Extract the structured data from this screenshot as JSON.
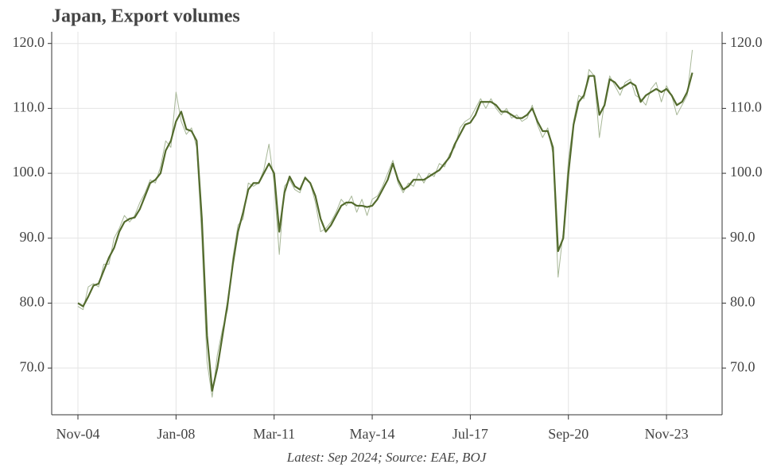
{
  "chart_data": {
    "type": "line",
    "title": "Japan, Export volumes",
    "footnote": "Latest: Sep 2024; Source: EAE, BOJ",
    "x": [
      "Nov-04",
      "Jan-05",
      "Mar-05",
      "May-05",
      "Jul-05",
      "Sep-05",
      "Nov-05",
      "Jan-06",
      "Mar-06",
      "May-06",
      "Jul-06",
      "Sep-06",
      "Nov-06",
      "Jan-07",
      "Mar-07",
      "May-07",
      "Jul-07",
      "Sep-07",
      "Nov-07",
      "Jan-08",
      "Mar-08",
      "May-08",
      "Jul-08",
      "Sep-08",
      "Nov-08",
      "Jan-09",
      "Mar-09",
      "May-09",
      "Jul-09",
      "Sep-09",
      "Nov-09",
      "Jan-10",
      "Mar-10",
      "May-10",
      "Jul-10",
      "Sep-10",
      "Nov-10",
      "Jan-11",
      "Mar-11",
      "May-11",
      "Jul-11",
      "Sep-11",
      "Nov-11",
      "Jan-12",
      "Mar-12",
      "May-12",
      "Jul-12",
      "Sep-12",
      "Nov-12",
      "Jan-13",
      "Mar-13",
      "May-13",
      "Jul-13",
      "Sep-13",
      "Nov-13",
      "Jan-14",
      "Mar-14",
      "May-14",
      "Jul-14",
      "Sep-14",
      "Nov-14",
      "Jan-15",
      "Mar-15",
      "May-15",
      "Jul-15",
      "Sep-15",
      "Nov-15",
      "Jan-16",
      "Mar-16",
      "May-16",
      "Jul-16",
      "Sep-16",
      "Nov-16",
      "Jan-17",
      "Mar-17",
      "May-17",
      "Jul-17",
      "Sep-17",
      "Nov-17",
      "Jan-18",
      "Mar-18",
      "May-18",
      "Jul-18",
      "Sep-18",
      "Nov-18",
      "Jan-19",
      "Mar-19",
      "May-19",
      "Jul-19",
      "Sep-19",
      "Nov-19",
      "Jan-20",
      "Mar-20",
      "May-20",
      "Jul-20",
      "Sep-20",
      "Nov-20",
      "Jan-21",
      "Mar-21",
      "May-21",
      "Jul-21",
      "Sep-21",
      "Nov-21",
      "Jan-22",
      "Mar-22",
      "May-22",
      "Jul-22",
      "Sep-22",
      "Nov-22",
      "Jan-23",
      "Mar-23",
      "May-23",
      "Jul-23",
      "Sep-23",
      "Nov-23",
      "Jan-24",
      "Mar-24",
      "May-24",
      "Jul-24",
      "Sep-24"
    ],
    "series": [
      {
        "color": "#a7b797",
        "values": [
          79.5,
          79,
          82.5,
          83,
          82.5,
          86,
          86,
          90,
          91.5,
          93.5,
          92.5,
          93.5,
          95.5,
          97,
          99,
          98.5,
          101,
          105,
          104,
          112.5,
          108,
          106,
          107,
          104,
          90,
          71,
          65.5,
          72,
          76,
          79,
          87,
          92,
          93,
          98.5,
          98,
          98.5,
          100.5,
          104.5,
          98.5,
          87.5,
          98,
          99,
          97.5,
          97,
          99.5,
          98.5,
          95.5,
          91,
          91.5,
          92.5,
          94,
          96,
          95,
          96.5,
          94,
          96,
          93.5,
          96,
          96.5,
          98,
          100,
          102,
          98.5,
          97,
          98.5,
          98,
          100,
          98.5,
          100,
          99.5,
          101.5,
          101,
          103,
          104,
          107,
          108,
          108.5,
          110,
          111.5,
          110,
          111.5,
          110,
          109,
          110,
          108.5,
          109,
          108,
          108.5,
          110.5,
          107.5,
          105.5,
          107,
          103,
          84,
          91,
          102,
          108,
          112,
          111.5,
          116,
          115,
          105.5,
          111,
          115,
          113.5,
          112,
          114,
          114.5,
          112,
          111.5,
          110.5,
          113,
          114,
          111,
          113.5,
          112,
          109,
          110.5,
          112,
          119
        ]
      },
      {
        "color": "#536b2d",
        "values": [
          80,
          79.5,
          81,
          82.7,
          83,
          85,
          87,
          88.5,
          91,
          92.5,
          93,
          93.2,
          94.5,
          96.5,
          98.5,
          99,
          100,
          103.5,
          105,
          108,
          109.5,
          106.8,
          106.5,
          105,
          93,
          75,
          66.5,
          70,
          75,
          80,
          86,
          91,
          94,
          97.5,
          98.5,
          98.5,
          100,
          101.5,
          100,
          91,
          97,
          99.5,
          98,
          97.5,
          99.3,
          98.5,
          96.5,
          93,
          91,
          92,
          93.5,
          95,
          95.5,
          95.5,
          95,
          95,
          94.8,
          95,
          96,
          97.5,
          99,
          101.5,
          99,
          97.5,
          98,
          99,
          99,
          99,
          99.5,
          100,
          100.5,
          101.5,
          102.5,
          104.5,
          106,
          107.5,
          107.8,
          109,
          111,
          111,
          111,
          110.5,
          109.5,
          109.5,
          109,
          108.5,
          108.5,
          109,
          110,
          108,
          106.5,
          106.5,
          104,
          88,
          90,
          100,
          107.5,
          111,
          112,
          115,
          115,
          109,
          110.5,
          114.5,
          114,
          113,
          113.5,
          114,
          113.5,
          111,
          112,
          112.5,
          113,
          112.5,
          113,
          112,
          110.5,
          111,
          112.5,
          115.5
        ]
      }
    ],
    "ylim": [
      62.8,
      121.8
    ],
    "yticks": [
      {
        "value": 70,
        "label": "70.0"
      },
      {
        "value": 80,
        "label": "80.0"
      },
      {
        "value": 90,
        "label": "90.0"
      },
      {
        "value": 100,
        "label": "100.0"
      },
      {
        "value": 110,
        "label": "110.0"
      },
      {
        "value": 120,
        "label": "120.0"
      }
    ],
    "xticks": [
      "Nov-04",
      "Jan-08",
      "Mar-11",
      "May-14",
      "Jul-17",
      "Sep-20",
      "Nov-23"
    ],
    "grid": true
  }
}
